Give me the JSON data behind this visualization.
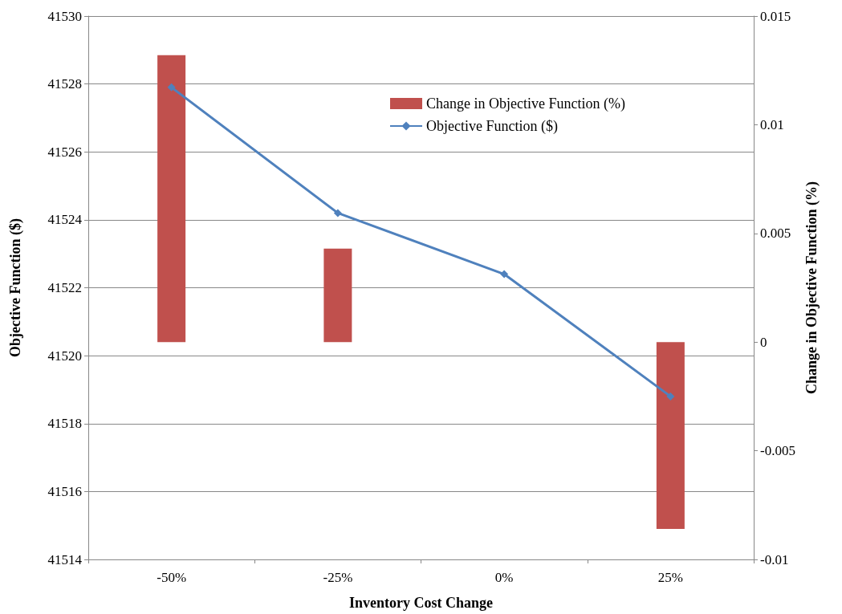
{
  "chart_data": {
    "type": "bar",
    "xlabel": "Inventory Cost Change",
    "ylabel": "Objective Function ($)",
    "y2label": "Change in Objective Function (%)",
    "categories": [
      "-50%",
      "-25%",
      "0%",
      "25%"
    ],
    "series": [
      {
        "name": "Change in Objective Function (%)",
        "axis": "y2",
        "color": "#c0504d",
        "values": [
          0.0132,
          0.0043,
          0,
          -0.0086
        ]
      },
      {
        "name": "Objective Function ($)",
        "type": "line",
        "color": "#4f81bd",
        "marker": "diamond",
        "values": [
          41527.9,
          41524.2,
          41522.4,
          41518.8
        ]
      }
    ],
    "ylim": [
      41514,
      41530
    ],
    "yticks": [
      41514,
      41516,
      41518,
      41520,
      41522,
      41524,
      41526,
      41528,
      41530
    ],
    "y2lim": [
      -0.01,
      0.015
    ],
    "y2ticks": [
      -0.01,
      -0.005,
      0,
      0.005,
      0.01,
      0.015
    ],
    "grid": "y",
    "legend": "top right"
  }
}
